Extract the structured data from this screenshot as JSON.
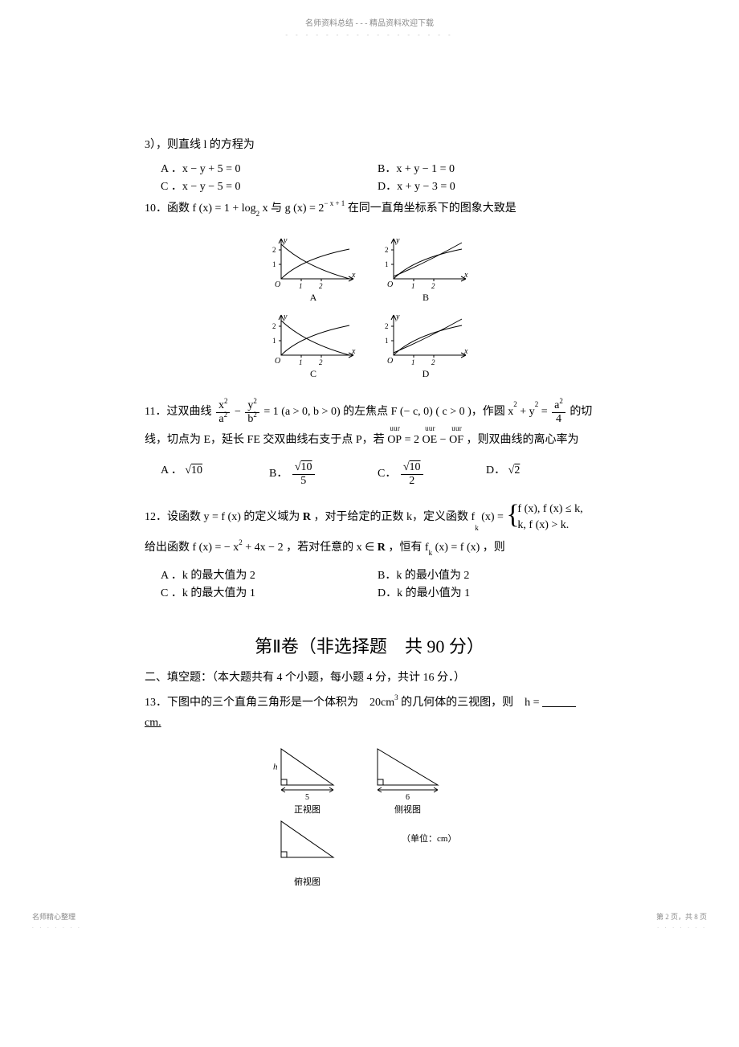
{
  "header": {
    "title": "名师资料总结 - - - 精品资料欢迎下载",
    "dots": "- - - - - - - - - - - - - - - - -"
  },
  "q9": {
    "stem": "3），则直线 l 的方程为",
    "opts": {
      "A": "A ．x − y + 5 = 0",
      "B": "B．x + y − 1 = 0",
      "C": "C ．x − y − 5 = 0",
      "D": "D．x + y − 3 = 0"
    }
  },
  "q10": {
    "stem_pre": "10．函数 f (x) = 1 + log",
    "log_base": "2",
    "stem_mid": " x 与 g (x) = 2",
    "exp": "− x + 1",
    "stem_post": " 在同一直角坐标系下的图象大致是",
    "graphs": {
      "x_ticks": [
        1,
        2
      ],
      "y_ticks": [
        1,
        2
      ],
      "labels": [
        "A",
        "B",
        "C",
        "D"
      ],
      "axis_label_x": "x",
      "axis_label_y": "y",
      "origin": "O"
    }
  },
  "q11": {
    "stem_pre": "11．过双曲线 ",
    "hyper_x_num": "x",
    "hyper_x_sup": "2",
    "hyper_a": "a",
    "hyper_a_sup": "2",
    "hyper_y_num": "y",
    "hyper_y_sup": "2",
    "hyper_b": "b",
    "hyper_b_sup": "2",
    "hyper_eq": " = 1 (a > 0, b > 0) 的左焦点 F (− c, 0) ( c > 0 )，作圆 x",
    "sq": "2",
    "plus_y": " + y",
    "eq_rhs_num": "a",
    "eq_rhs_sup": "2",
    "eq_rhs_den": "4",
    "stem_tail": " 的切",
    "line2_pre": "线，切点为 E，延长 FE 交双曲线右支于点 P，若 ",
    "vec_op": "OP",
    "vec_oe": "OE",
    "vec_of": "OF",
    "vec_rel": " = 2",
    "minus": " − ",
    "line2_post": " ，则双曲线的离心率为",
    "opts": {
      "A_label": "A ．",
      "A_sqrt": "10",
      "B_label": "B．",
      "B_num_sqrt": "10",
      "B_den": "5",
      "C_label": "C．",
      "C_num_sqrt": "10",
      "C_den": "2",
      "D_label": "D．",
      "D_sqrt": "2"
    }
  },
  "q12": {
    "stem_pre": "12．设函数 y = f (x) 的定义域为 ",
    "R1": "R",
    "stem_mid": " ，对于给定的正数 k，定义函数 f",
    "k_sub": "k",
    "stem_eq": " (x) = ",
    "case1": "f (x), f (x) ≤ k,",
    "case2": "k, f (x) > k.",
    "line2_pre": "给出函数 f (x) = − x",
    "sq": "2",
    "line2_mid": " + 4x − 2 ，若对任意的 x ∈ ",
    "R2": "R",
    "line2_post": " ，恒有 f",
    "line2_tail": " (x) = f (x) ，则",
    "opts": {
      "A": "A ．k 的最大值为 2",
      "B": "B．k 的最小值为 2",
      "C": "C ．k 的最大值为 1",
      "D": "D．k 的最小值为 1"
    }
  },
  "section2": {
    "title": "第Ⅱ卷（非选择题　共 90 分）"
  },
  "fill_intro": "二、填空题：（本大题共有 4 个小题，每小题 4 分，共计 16 分．）",
  "q13": {
    "stem_pre": "13．下图中的三个直角三角形是一个体积为　20cm",
    "cube": "3",
    "stem_mid": " 的几何体的三视图，则　h = ",
    "blank": "　　　",
    "unit": " cm.",
    "views": {
      "front": {
        "label": "正视图",
        "w": "5",
        "h": "h"
      },
      "side": {
        "label": "侧视图",
        "w": "6"
      },
      "top": {
        "label": "俯视图"
      },
      "unit_note": "（单位：cm）"
    }
  },
  "footer": {
    "left": "名师精心整理",
    "right": "第 2 页，共 8 页",
    "dots": ". . . . . . ."
  }
}
